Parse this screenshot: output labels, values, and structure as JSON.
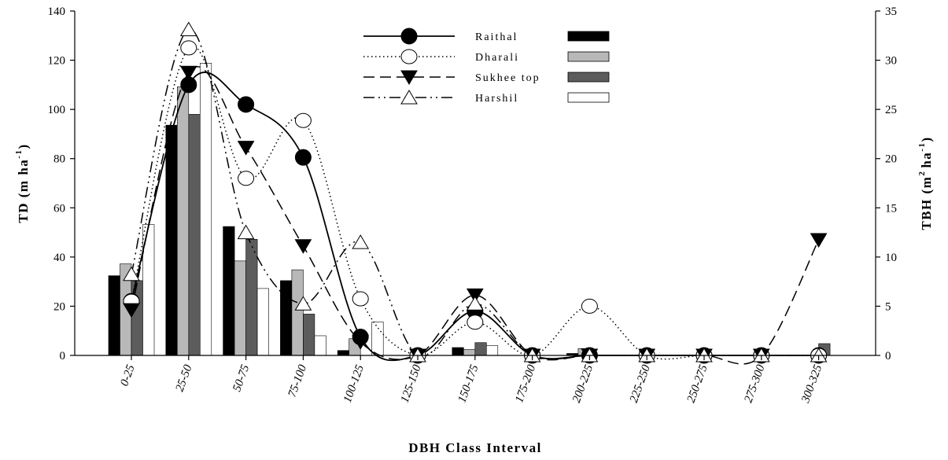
{
  "chart_data": {
    "type": "bar",
    "categories": [
      "0-25",
      "25-50",
      "50-75",
      "75-100",
      "100-125",
      "125-150",
      "150-175",
      "175-200",
      "200-225",
      "225-250",
      "250-275",
      "275-300",
      "300-325"
    ],
    "xlabel": "DBH Class Interval",
    "ylabel_left": "TD (m ha",
    "ylabel_left_sup": "-1",
    "ylabel_left_close": ")",
    "ylabel_right": "TBH (m",
    "ylabel_right_sup1": "2",
    "ylabel_right_mid": "ha",
    "ylabel_right_sup2": "-1",
    "ylabel_right_close": ")",
    "ylim_left": [
      0,
      140
    ],
    "yticks_left": [
      0,
      20,
      40,
      60,
      80,
      100,
      120,
      140
    ],
    "ylim_right": [
      0,
      35
    ],
    "yticks_right": [
      0,
      5,
      10,
      15,
      20,
      25,
      30,
      35
    ],
    "grid": false,
    "legend_position": "top-center",
    "line_series_axis": "left (TD)",
    "bar_series_axis": "right (TBH)",
    "line_series": [
      {
        "name": "Raithal",
        "style": "solid",
        "marker": "filled-circle",
        "values": [
          22,
          110,
          102,
          80.5,
          7.5,
          0,
          18,
          0,
          0,
          0,
          0,
          0,
          0
        ]
      },
      {
        "name": "Dharali",
        "style": "dotted",
        "marker": "open-circle",
        "values": [
          22,
          125,
          72,
          95.5,
          23,
          0,
          13.5,
          0,
          20,
          0,
          0,
          0,
          0
        ]
      },
      {
        "name": "Sukhee top",
        "style": "dashed",
        "marker": "filled-triangle-down",
        "values": [
          18.5,
          115,
          84.5,
          44.5,
          5.5,
          0,
          24.5,
          0,
          0,
          0,
          0,
          0,
          47
        ]
      },
      {
        "name": "Harshil",
        "style": "dash-dot",
        "marker": "open-triangle-up",
        "values": [
          33,
          132.5,
          50,
          21,
          46,
          0,
          21,
          0,
          0,
          0,
          0,
          0,
          0
        ]
      }
    ],
    "bar_series": [
      {
        "name": "Raithal",
        "color": "#000000",
        "values": [
          8.1,
          23.4,
          13.1,
          7.6,
          0.5,
          0,
          0.8,
          0,
          0.2,
          0,
          0,
          0,
          0
        ]
      },
      {
        "name": "Dharali",
        "color": "#b8b8b8",
        "values": [
          9.3,
          27.3,
          9.6,
          8.7,
          1.7,
          0,
          0.6,
          0,
          0.7,
          0,
          0,
          0,
          0
        ]
      },
      {
        "name": "Sukhee top",
        "color": "#5c5c5c",
        "values": [
          7.6,
          24.5,
          11.8,
          4.2,
          0,
          0,
          1.3,
          0,
          0,
          0,
          0,
          0,
          1.2
        ]
      },
      {
        "name": "Harshil",
        "color": "#ffffff",
        "values": [
          13.3,
          29.7,
          6.8,
          2.0,
          3.4,
          0,
          1.0,
          0,
          0,
          0,
          0,
          0,
          0
        ]
      }
    ]
  }
}
